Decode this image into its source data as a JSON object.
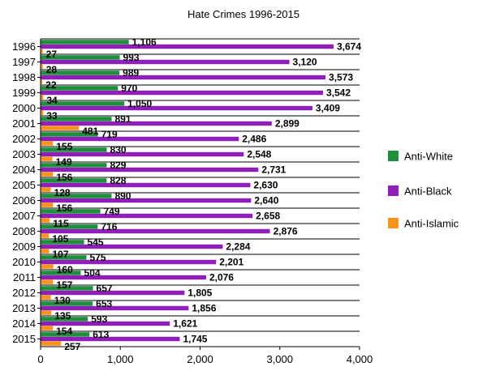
{
  "chart_data": {
    "type": "bar",
    "orientation": "horizontal",
    "title": "Hate Crimes 1996-2015",
    "xlabel": "",
    "ylabel": "",
    "xlim": [
      0,
      4000
    ],
    "x_ticks": [
      "0",
      "1,000",
      "2,000",
      "3,000",
      "4,000"
    ],
    "x_tick_values": [
      0,
      1000,
      2000,
      3000,
      4000
    ],
    "grid": "horizontal row separators",
    "legend_position": "right",
    "categories": [
      "1996",
      "1997",
      "1998",
      "1999",
      "2000",
      "2001",
      "2002",
      "2003",
      "2004",
      "2005",
      "2006",
      "2007",
      "2008",
      "2009",
      "2010",
      "2011",
      "2012",
      "2013",
      "2014",
      "2015"
    ],
    "series": [
      {
        "name": "Anti-White",
        "color": "#1e8f3c",
        "values": [
          1106,
          993,
          989,
          970,
          1050,
          891,
          719,
          830,
          829,
          828,
          890,
          749,
          716,
          545,
          575,
          504,
          657,
          653,
          593,
          613
        ],
        "labels": [
          "1,106",
          "993",
          "989",
          "970",
          "1,050",
          "891",
          "719",
          "830",
          "829",
          "828",
          "890",
          "749",
          "716",
          "545",
          "575",
          "504",
          "657",
          "653",
          "593",
          "613"
        ]
      },
      {
        "name": "Anti-Black",
        "color": "#8f1fb8",
        "values": [
          3674,
          3120,
          3573,
          3542,
          3409,
          2899,
          2486,
          2548,
          2731,
          2630,
          2640,
          2658,
          2876,
          2284,
          2201,
          2076,
          1805,
          1856,
          1621,
          1745
        ],
        "labels": [
          "3,674",
          "3,120",
          "3,573",
          "3,542",
          "3,409",
          "2,899",
          "2,486",
          "2,548",
          "2,731",
          "2,630",
          "2,640",
          "2,658",
          "2,876",
          "2,284",
          "2,201",
          "2,076",
          "1,805",
          "1,856",
          "1,621",
          "1,745"
        ]
      },
      {
        "name": "Anti-Islamic",
        "color": "#f7931e",
        "values": [
          27,
          28,
          22,
          34,
          33,
          481,
          155,
          149,
          156,
          128,
          156,
          115,
          105,
          107,
          160,
          157,
          130,
          135,
          154,
          257
        ],
        "labels": [
          "27",
          "28",
          "22",
          "34",
          "33",
          "481",
          "155",
          "149",
          "156",
          "128",
          "156",
          "115",
          "105",
          "107",
          "160",
          "157",
          "130",
          "135",
          "154",
          "257"
        ]
      }
    ]
  }
}
